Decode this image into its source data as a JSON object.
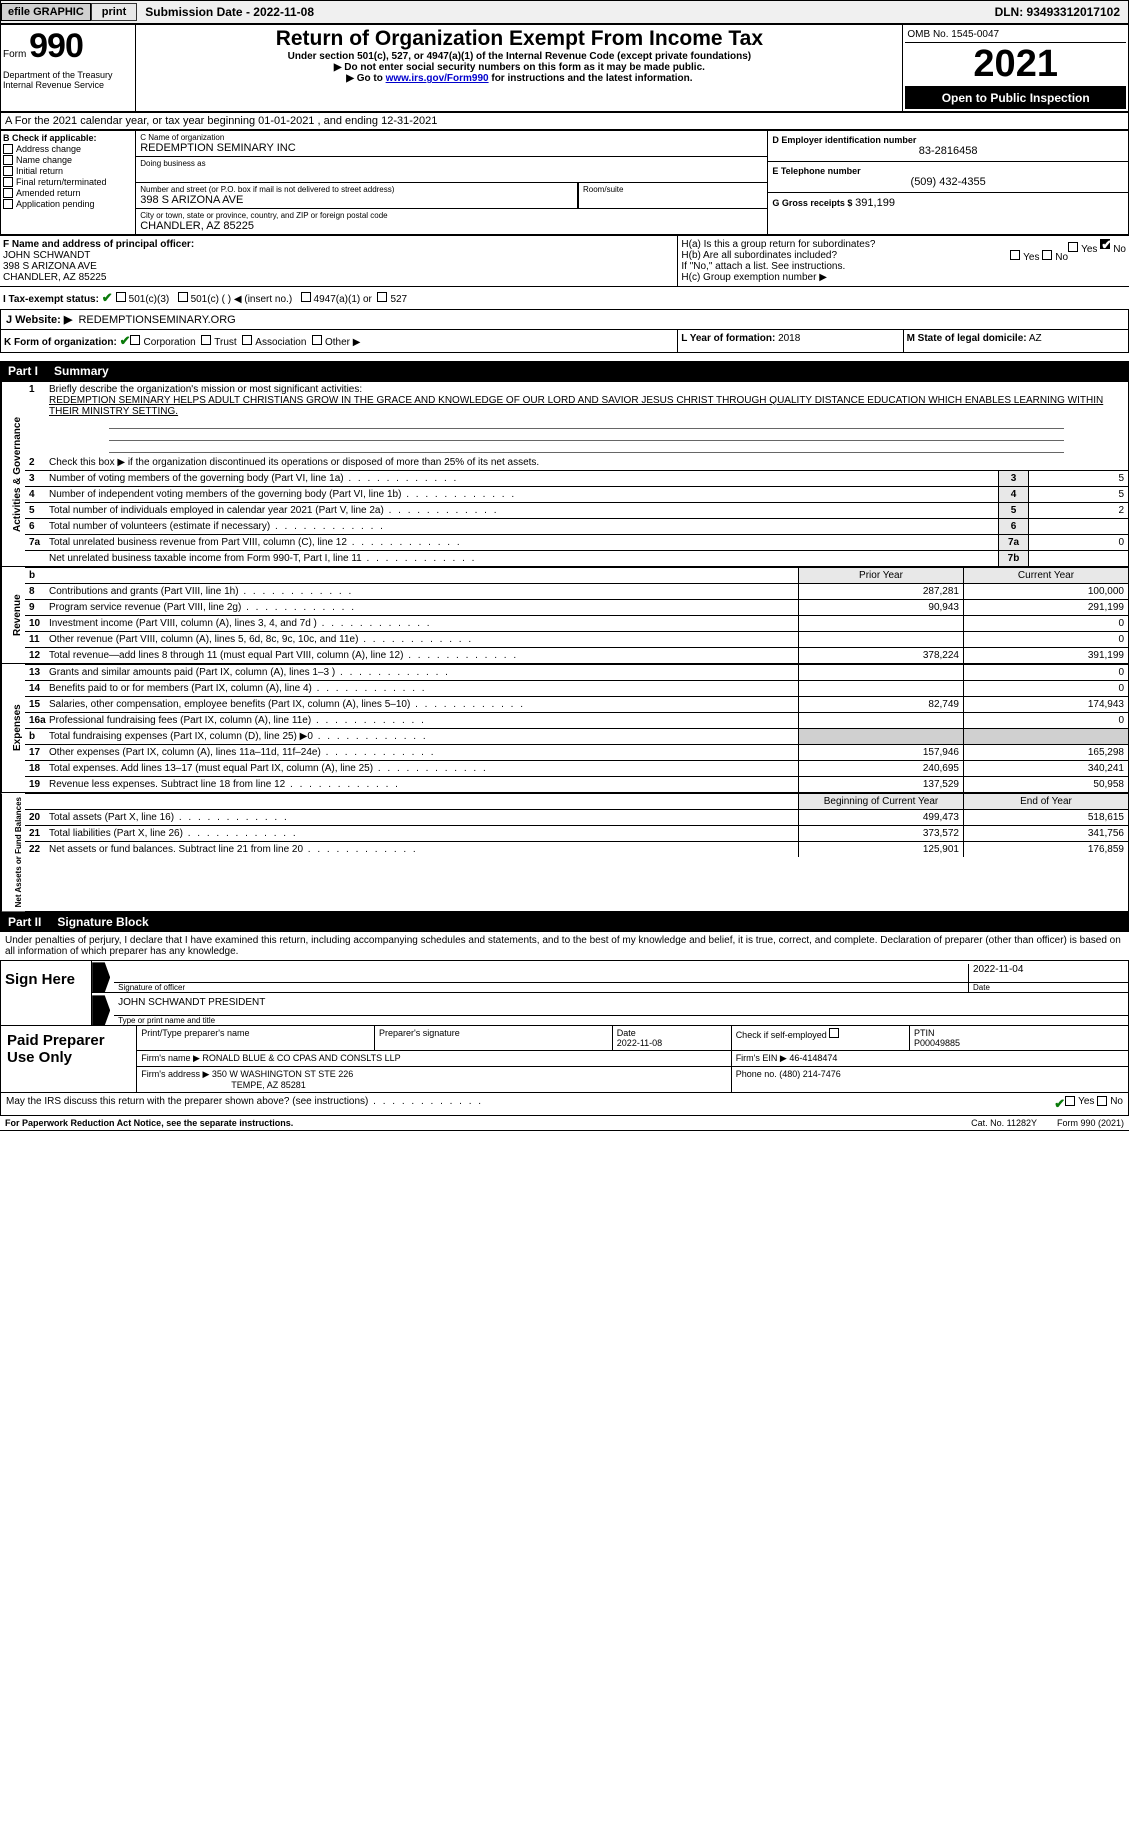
{
  "topbar": {
    "efile_label": "efile GRAPHIC",
    "print_btn": "print",
    "submission_label": "Submission Date - 2022-11-08",
    "dln_label": "DLN: 93493312017102"
  },
  "header": {
    "form_word": "Form",
    "form_number": "990",
    "main_title": "Return of Organization Exempt From Income Tax",
    "sub1": "Under section 501(c), 527, or 4947(a)(1) of the Internal Revenue Code (except private foundations)",
    "sub2": "▶ Do not enter social security numbers on this form as it may be made public.",
    "sub3_prefix": "▶ Go to ",
    "sub3_link": "www.irs.gov/Form990",
    "sub3_suffix": " for instructions and the latest information.",
    "dept": "Department of the Treasury\nInternal Revenue Service",
    "omb": "OMB No. 1545-0047",
    "tax_year": "2021",
    "open_public": "Open to Public Inspection"
  },
  "line_a": "A For the 2021 calendar year, or tax year beginning 01-01-2021   , and ending 12-31-2021",
  "block_b": {
    "label": "B Check if applicable:",
    "items": [
      "Address change",
      "Name change",
      "Initial return",
      "Final return/terminated",
      "Amended return",
      "Application pending"
    ]
  },
  "block_c": {
    "name_label": "C Name of organization",
    "name_value": "REDEMPTION SEMINARY INC",
    "dba_label": "Doing business as",
    "street_label": "Number and street (or P.O. box if mail is not delivered to street address)",
    "street_value": "398 S ARIZONA AVE",
    "room_label": "Room/suite",
    "city_label": "City or town, state or province, country, and ZIP or foreign postal code",
    "city_value": "CHANDLER, AZ  85225"
  },
  "block_d": {
    "label": "D Employer identification number",
    "value": "83-2816458"
  },
  "block_e": {
    "label": "E Telephone number",
    "value": "(509) 432-4355"
  },
  "block_g": {
    "label": "G Gross receipts $",
    "value": "391,199"
  },
  "block_f": {
    "label": "F Name and address of principal officer:",
    "name": "JOHN SCHWANDT",
    "street": "398 S ARIZONA AVE",
    "city": "CHANDLER, AZ  85225"
  },
  "block_h": {
    "ha": "H(a)  Is this a group return for subordinates?",
    "ha_yes": "Yes",
    "ha_no": "No",
    "hb": "H(b)  Are all subordinates included?",
    "hb_yes": "Yes",
    "hb_no": "No",
    "hb_note": "If \"No,\" attach a list. See instructions.",
    "hc": "H(c)  Group exemption number ▶"
  },
  "block_i": {
    "label": "I  Tax-exempt status:",
    "o1": "501(c)(3)",
    "o2": "501(c) (  ) ◀ (insert no.)",
    "o3": "4947(a)(1) or",
    "o4": "527"
  },
  "block_j": {
    "label": "J  Website: ▶",
    "value": "REDEMPTIONSEMINARY.ORG"
  },
  "block_k": {
    "label": "K Form of organization:",
    "o1": "Corporation",
    "o2": "Trust",
    "o3": "Association",
    "o4": "Other ▶"
  },
  "block_l": {
    "label": "L Year of formation:",
    "value": "2018"
  },
  "block_m": {
    "label": "M State of legal domicile:",
    "value": "AZ"
  },
  "part1": {
    "num": "Part I",
    "title": "Summary"
  },
  "governance": {
    "vtab": "Activities & Governance",
    "l1_label": "Briefly describe the organization's mission or most significant activities:",
    "l1_text": "REDEMPTION SEMINARY HELPS ADULT CHRISTIANS GROW IN THE GRACE AND KNOWLEDGE OF OUR LORD AND SAVIOR JESUS CHRIST THROUGH QUALITY DISTANCE EDUCATION WHICH ENABLES LEARNING WITHIN THEIR MINISTRY SETTING.",
    "l2": "Check this box ▶     if the organization discontinued its operations or disposed of more than 25% of its net assets.",
    "rows": [
      {
        "n": "3",
        "t": "Number of voting members of the governing body (Part VI, line 1a)",
        "box": "3",
        "v": "5"
      },
      {
        "n": "4",
        "t": "Number of independent voting members of the governing body (Part VI, line 1b)",
        "box": "4",
        "v": "5"
      },
      {
        "n": "5",
        "t": "Total number of individuals employed in calendar year 2021 (Part V, line 2a)",
        "box": "5",
        "v": "2"
      },
      {
        "n": "6",
        "t": "Total number of volunteers (estimate if necessary)",
        "box": "6",
        "v": ""
      },
      {
        "n": "7a",
        "t": "Total unrelated business revenue from Part VIII, column (C), line 12",
        "box": "7a",
        "v": "0"
      },
      {
        "n": "",
        "t": "Net unrelated business taxable income from Form 990-T, Part I, line 11",
        "box": "7b",
        "v": ""
      }
    ]
  },
  "col_headers": {
    "b": "b",
    "prior": "Prior Year",
    "current": "Current Year"
  },
  "revenue": {
    "vtab": "Revenue",
    "rows": [
      {
        "n": "8",
        "t": "Contributions and grants (Part VIII, line 1h)",
        "p": "287,281",
        "c": "100,000"
      },
      {
        "n": "9",
        "t": "Program service revenue (Part VIII, line 2g)",
        "p": "90,943",
        "c": "291,199"
      },
      {
        "n": "10",
        "t": "Investment income (Part VIII, column (A), lines 3, 4, and 7d )",
        "p": "",
        "c": "0"
      },
      {
        "n": "11",
        "t": "Other revenue (Part VIII, column (A), lines 5, 6d, 8c, 9c, 10c, and 11e)",
        "p": "",
        "c": "0"
      },
      {
        "n": "12",
        "t": "Total revenue—add lines 8 through 11 (must equal Part VIII, column (A), line 12)",
        "p": "378,224",
        "c": "391,199"
      }
    ]
  },
  "expenses": {
    "vtab": "Expenses",
    "rows": [
      {
        "n": "13",
        "t": "Grants and similar amounts paid (Part IX, column (A), lines 1–3 )",
        "p": "",
        "c": "0"
      },
      {
        "n": "14",
        "t": "Benefits paid to or for members (Part IX, column (A), line 4)",
        "p": "",
        "c": "0"
      },
      {
        "n": "15",
        "t": "Salaries, other compensation, employee benefits (Part IX, column (A), lines 5–10)",
        "p": "82,749",
        "c": "174,943"
      },
      {
        "n": "16a",
        "t": "Professional fundraising fees (Part IX, column (A), line 11e)",
        "p": "",
        "c": "0"
      },
      {
        "n": "b",
        "t": "Total fundraising expenses (Part IX, column (D), line 25) ▶0",
        "p": "SHADE",
        "c": "SHADE"
      },
      {
        "n": "17",
        "t": "Other expenses (Part IX, column (A), lines 11a–11d, 11f–24e)",
        "p": "157,946",
        "c": "165,298"
      },
      {
        "n": "18",
        "t": "Total expenses. Add lines 13–17 (must equal Part IX, column (A), line 25)",
        "p": "240,695",
        "c": "340,241"
      },
      {
        "n": "19",
        "t": "Revenue less expenses. Subtract line 18 from line 12",
        "p": "137,529",
        "c": "50,958"
      }
    ]
  },
  "netassets": {
    "vtab": "Net Assets or Fund Balances",
    "header_p": "Beginning of Current Year",
    "header_c": "End of Year",
    "rows": [
      {
        "n": "20",
        "t": "Total assets (Part X, line 16)",
        "p": "499,473",
        "c": "518,615"
      },
      {
        "n": "21",
        "t": "Total liabilities (Part X, line 26)",
        "p": "373,572",
        "c": "341,756"
      },
      {
        "n": "22",
        "t": "Net assets or fund balances. Subtract line 21 from line 20",
        "p": "125,901",
        "c": "176,859"
      }
    ]
  },
  "part2": {
    "num": "Part II",
    "title": "Signature Block"
  },
  "sig_declaration": "Under penalties of perjury, I declare that I have examined this return, including accompanying schedules and statements, and to the best of my knowledge and belief, it is true, correct, and complete. Declaration of preparer (other than officer) is based on all information of which preparer has any knowledge.",
  "sign": {
    "label": "Sign Here",
    "sig_officer_label": "Signature of officer",
    "date": "2022-11-04",
    "date_label": "Date",
    "printed_name": "JOHN SCHWANDT  PRESIDENT",
    "printed_label": "Type or print name and title"
  },
  "paid": {
    "label": "Paid Preparer Use Only",
    "r1": {
      "c1_label": "Print/Type preparer's name",
      "c2_label": "Preparer's signature",
      "c3_label": "Date",
      "c3_val": "2022-11-08",
      "c4_label": "Check        if self-employed",
      "c5_label": "PTIN",
      "c5_val": "P00049885"
    },
    "r2": {
      "label": "Firm's name     ▶",
      "val": "RONALD BLUE & CO CPAS AND CONSLTS LLP",
      "ein_label": "Firm's EIN ▶",
      "ein_val": "46-4148474"
    },
    "r3": {
      "label": "Firm's address ▶",
      "val1": "350 W WASHINGTON ST STE 226",
      "val2": "TEMPE, AZ  85281",
      "phone_label": "Phone no.",
      "phone_val": "(480) 214-7476"
    }
  },
  "discuss": {
    "text": "May the IRS discuss this return with the preparer shown above? (see instructions)",
    "yes": "Yes",
    "no": "No"
  },
  "footer": {
    "paperwork": "For Paperwork Reduction Act Notice, see the separate instructions.",
    "cat": "Cat. No. 11282Y",
    "form_ref": "Form 990 (2021)"
  },
  "colors": {
    "accent": "#0a7a0a",
    "link": "#0000cc",
    "shade": "#d0d0d0",
    "boxbg": "#e8e8e8"
  }
}
